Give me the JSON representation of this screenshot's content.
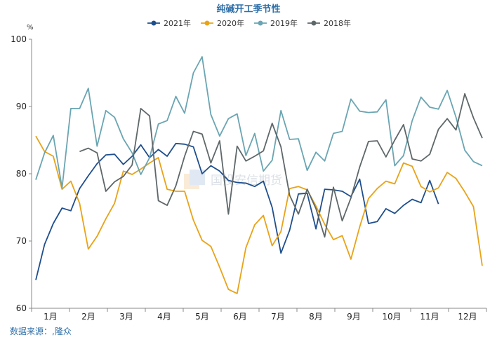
{
  "chart_data": {
    "type": "line",
    "title": "纯碱开工季节性",
    "ylabel": "%",
    "ylim": [
      60,
      100
    ],
    "yticks": [
      60,
      70,
      80,
      90,
      100
    ],
    "months": [
      "1月",
      "2月",
      "3月",
      "4月",
      "5月",
      "6月",
      "7月",
      "8月",
      "9月",
      "10月",
      "11月",
      "12月"
    ],
    "weeks_in_year": 52,
    "grid": false,
    "legend_position": "top",
    "source": "数据来源：,隆众",
    "watermark": "国投安信期货",
    "series": [
      {
        "name": "2021年",
        "color": "#1f4e8c",
        "week_start": 1,
        "values": [
          64.2,
          69.5,
          72.6,
          74.9,
          74.5,
          77.8,
          79.7,
          81.5,
          82.8,
          82.9,
          81.4,
          82.6,
          84.3,
          82.4,
          83.6,
          82.6,
          84.5,
          84.4,
          84.0,
          80.0,
          81.2,
          80.4,
          79.0,
          78.7,
          78.6,
          78.1,
          78.9,
          75.0,
          68.2,
          71.6,
          77.0,
          77.1,
          71.8,
          77.7,
          77.6,
          77.4,
          76.6,
          79.2,
          72.6,
          72.9,
          74.8,
          74.1,
          75.3,
          76.2,
          75.7,
          79.0,
          75.5
        ]
      },
      {
        "name": "2020年",
        "color": "#e8a317",
        "week_start": 1,
        "values": [
          85.6,
          83.3,
          82.6,
          77.7,
          78.9,
          75.6,
          68.8,
          70.7,
          73.3,
          75.6,
          80.4,
          79.9,
          80.7,
          81.6,
          82.4,
          77.7,
          77.4,
          77.4,
          73.1,
          70.1,
          69.2,
          66.1,
          62.8,
          62.2,
          69.0,
          72.4,
          73.8,
          69.3,
          71.4,
          77.8,
          78.1,
          77.6,
          75.2,
          72.5,
          70.2,
          70.8,
          67.3,
          72.1,
          76.3,
          77.8,
          78.9,
          78.5,
          81.6,
          81.1,
          78.1,
          77.3,
          77.9,
          80.2,
          79.3,
          77.3,
          75.1,
          66.3
        ]
      },
      {
        "name": "2019年",
        "color": "#6aa5b2",
        "week_start": 1,
        "values": [
          79.1,
          83.1,
          85.7,
          77.9,
          89.7,
          89.7,
          92.7,
          84.1,
          89.4,
          88.4,
          85.2,
          83.1,
          79.9,
          82.4,
          87.4,
          87.9,
          91.5,
          89.0,
          95.0,
          97.4,
          88.8,
          85.6,
          88.2,
          88.9,
          82.7,
          86.0,
          80.4,
          82.0,
          89.4,
          85.1,
          85.2,
          80.5,
          83.2,
          81.9,
          86.0,
          86.3,
          91.1,
          89.3,
          89.1,
          89.2,
          91.0,
          81.2,
          82.7,
          87.9,
          91.4,
          89.9,
          89.6,
          92.4,
          88.4,
          83.5,
          81.8,
          81.2
        ]
      },
      {
        "name": "2018年",
        "color": "#5e6769",
        "week_start": 6,
        "values": [
          83.3,
          83.8,
          83.1,
          77.4,
          78.8,
          79.6,
          81.3,
          89.7,
          88.6,
          76.0,
          75.3,
          78.2,
          82.6,
          86.3,
          85.9,
          81.6,
          84.9,
          74.0,
          84.1,
          81.9,
          82.6,
          83.4,
          87.5,
          84.0,
          76.8,
          74.0,
          77.7,
          74.8,
          70.6,
          78.0,
          73.0,
          76.4,
          81.0,
          84.8,
          84.9,
          82.5,
          85.0,
          87.3,
          82.2,
          81.9,
          82.9,
          86.6,
          88.2,
          86.5,
          91.9,
          88.3,
          85.3
        ]
      }
    ]
  }
}
